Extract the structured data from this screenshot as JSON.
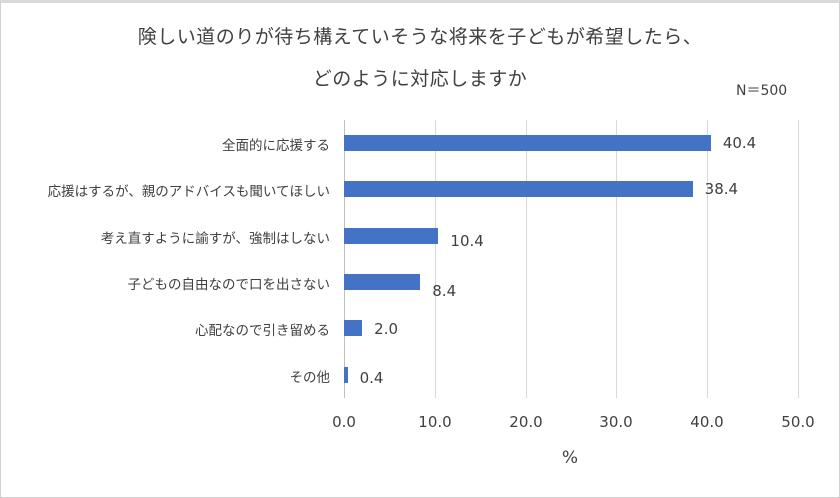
{
  "chart_data": {
    "type": "bar",
    "orientation": "horizontal",
    "title": "険しい道のりが待ち構えていそうな将来を子どもが希望したら、どのように対応しますか",
    "title_lines": [
      "険しい道のりが待ち構えていそうな将来を子どもが希望したら、",
      "どのように対応しますか"
    ],
    "annotation": "N＝500",
    "categories": [
      "全面的に応援する",
      "応援はするが、親のアドバイスも聞いてほしい",
      "考え直すように諭すが、強制はしない",
      "子どもの自由なので口を出さない",
      "心配なので引き留める",
      "その他"
    ],
    "values": [
      40.4,
      38.4,
      10.4,
      8.4,
      2.0,
      0.4
    ],
    "value_labels": [
      "40.4",
      "38.4",
      "10.4",
      "8.4",
      "2.0",
      "0.4"
    ],
    "xlabel": "%",
    "ylabel": "",
    "xlim": [
      0,
      50
    ],
    "xticks": [
      "0.0",
      "10.0",
      "20.0",
      "30.0",
      "40.0",
      "50.0"
    ],
    "grid": true,
    "legend": "none",
    "bar_color": "#4472c4"
  }
}
